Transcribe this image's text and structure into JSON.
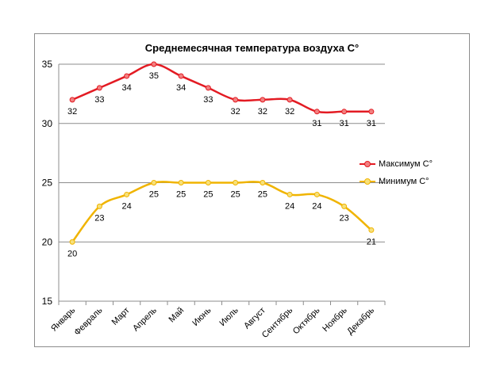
{
  "chart_data": {
    "type": "line",
    "title": "Среднемесячная температура воздуха C°",
    "categories": [
      "Январь",
      "Февраль",
      "Март",
      "Апрель",
      "Май",
      "Июнь",
      "Июль",
      "Август",
      "Сентябрь",
      "Октябрь",
      "Ноябрь",
      "Декабрь"
    ],
    "series": [
      {
        "name": "Максимум C°",
        "values": [
          32,
          33,
          34,
          35,
          34,
          33,
          32,
          32,
          32,
          31,
          31,
          31
        ],
        "color": "#e31b23",
        "marker_fill": "#f28080"
      },
      {
        "name": "Минимум C°",
        "values": [
          20,
          23,
          24,
          25,
          25,
          25,
          25,
          25,
          24,
          24,
          23,
          21
        ],
        "color": "#f0b400",
        "marker_fill": "#f7e07a"
      }
    ],
    "ylim": [
      15,
      35
    ],
    "yticks": [
      15,
      20,
      25,
      30,
      35
    ],
    "grid": true,
    "smooth": true,
    "data_labels": true,
    "legend": "right"
  }
}
